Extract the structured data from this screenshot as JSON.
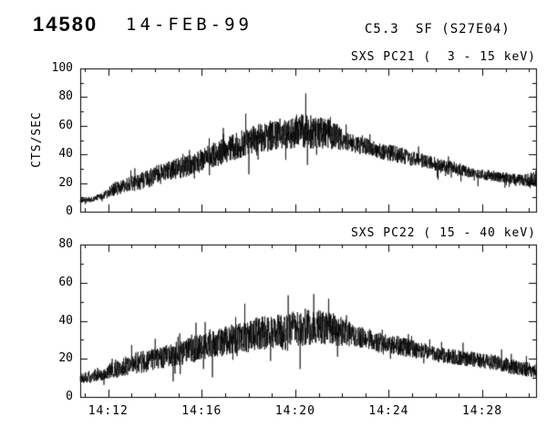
{
  "header": {
    "event_number": "14580",
    "date": "14-FEB-99",
    "goes_class": "C5.3",
    "flare_info": "SF (S27E04)"
  },
  "chart_data": [
    {
      "type": "line",
      "title": "SXS PC21 (  3 - 15 keV)",
      "ylabel": "CTS/SEC",
      "ylim": [
        0,
        100
      ],
      "yticks": [
        0,
        20,
        40,
        60,
        80,
        100
      ],
      "y_minor_step": 10,
      "xlim_minutes": [
        10.8,
        30.3
      ],
      "x_minor_step_minutes": 1,
      "xticks": [
        {
          "minute": 12,
          "label": "14:12"
        },
        {
          "minute": 16,
          "label": "14:16"
        },
        {
          "minute": 20,
          "label": "14:20"
        },
        {
          "minute": 24,
          "label": "14:24"
        },
        {
          "minute": 28,
          "label": "14:28"
        }
      ],
      "show_x_tick_labels": false,
      "noise_seed": 21,
      "envelope_points": [
        [
          10.8,
          8,
          2
        ],
        [
          11.4,
          9,
          2
        ],
        [
          11.9,
          12,
          3
        ],
        [
          12.1,
          15,
          5
        ],
        [
          12.7,
          18,
          5
        ],
        [
          13.3,
          21,
          6
        ],
        [
          14,
          25,
          7
        ],
        [
          14.7,
          29,
          7
        ],
        [
          15.4,
          32,
          8
        ],
        [
          16,
          36,
          8
        ],
        [
          16.6,
          40,
          9
        ],
        [
          17.2,
          44,
          9
        ],
        [
          17.8,
          48,
          10
        ],
        [
          18.4,
          51,
          10
        ],
        [
          19,
          53,
          11
        ],
        [
          19.6,
          55,
          11
        ],
        [
          20.1,
          56,
          12
        ],
        [
          20.7,
          56,
          12
        ],
        [
          21.2,
          55,
          11
        ],
        [
          21.7,
          53,
          10
        ],
        [
          22.1,
          50,
          7
        ],
        [
          22.6,
          47,
          6
        ],
        [
          23.2,
          45,
          6
        ],
        [
          23.8,
          42,
          6
        ],
        [
          24.4,
          40,
          6
        ],
        [
          25,
          37,
          5
        ],
        [
          25.6,
          35,
          5
        ],
        [
          26.2,
          32,
          5
        ],
        [
          26.8,
          30,
          5
        ],
        [
          27.4,
          28,
          4
        ],
        [
          28,
          26,
          4
        ],
        [
          28.6,
          25,
          4
        ],
        [
          29.2,
          23,
          4
        ],
        [
          29.8,
          22,
          4
        ],
        [
          30.3,
          23,
          6
        ]
      ]
    },
    {
      "type": "line",
      "title": "SXS PC22 ( 15 - 40 keV)",
      "ylabel": "",
      "ylim": [
        0,
        80
      ],
      "yticks": [
        0,
        20,
        40,
        60,
        80
      ],
      "y_minor_step": 10,
      "xlim_minutes": [
        10.8,
        30.3
      ],
      "x_minor_step_minutes": 1,
      "xticks": [
        {
          "minute": 12,
          "label": "14:12"
        },
        {
          "minute": 16,
          "label": "14:16"
        },
        {
          "minute": 20,
          "label": "14:20"
        },
        {
          "minute": 24,
          "label": "14:24"
        },
        {
          "minute": 28,
          "label": "14:28"
        }
      ],
      "show_x_tick_labels": true,
      "noise_seed": 22,
      "envelope_points": [
        [
          10.8,
          10,
          3
        ],
        [
          11.4,
          11,
          3
        ],
        [
          11.9,
          12,
          3
        ],
        [
          12.1,
          14,
          5
        ],
        [
          12.7,
          16,
          5
        ],
        [
          13.3,
          18,
          6
        ],
        [
          14,
          20,
          6
        ],
        [
          14.7,
          22,
          6
        ],
        [
          15.4,
          24,
          7
        ],
        [
          16,
          26,
          7
        ],
        [
          16.6,
          28,
          7
        ],
        [
          17.2,
          30,
          8
        ],
        [
          17.8,
          31,
          8
        ],
        [
          18.4,
          33,
          9
        ],
        [
          19,
          34,
          9
        ],
        [
          19.6,
          35,
          9
        ],
        [
          20.1,
          36,
          10
        ],
        [
          20.7,
          37,
          10
        ],
        [
          21.2,
          36,
          9
        ],
        [
          21.7,
          35,
          9
        ],
        [
          22.1,
          34,
          7
        ],
        [
          22.6,
          32,
          6
        ],
        [
          23.2,
          30,
          5
        ],
        [
          23.8,
          28,
          5
        ],
        [
          24.4,
          27,
          5
        ],
        [
          25,
          25,
          5
        ],
        [
          25.6,
          24,
          4
        ],
        [
          26.2,
          22,
          4
        ],
        [
          26.8,
          21,
          4
        ],
        [
          27.4,
          20,
          4
        ],
        [
          28,
          19,
          4
        ],
        [
          28.6,
          18,
          4
        ],
        [
          29.2,
          16,
          4
        ],
        [
          29.8,
          15,
          4
        ],
        [
          30.3,
          13,
          4
        ]
      ]
    }
  ]
}
